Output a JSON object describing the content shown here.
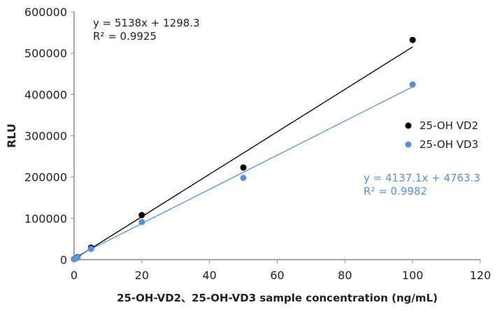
{
  "chart_data": {
    "type": "scatter",
    "xlabel": "25-OH-VD2、25-OH-VD3 sample concentration (ng/mL)",
    "ylabel": "RLU",
    "xlim": [
      0,
      120
    ],
    "ylim": [
      0,
      600000
    ],
    "xticks": [
      0,
      20,
      40,
      60,
      80,
      100,
      120
    ],
    "yticks": [
      0,
      100000,
      200000,
      300000,
      400000,
      500000,
      600000
    ],
    "grid": false,
    "legend_placement": "right",
    "series": [
      {
        "name": "25-OH VD2",
        "color": "#000000",
        "x": [
          0,
          0.5,
          1,
          5,
          20,
          50,
          100
        ],
        "y": [
          1500,
          3500,
          6000,
          29000,
          108000,
          223000,
          532000
        ],
        "trendline": {
          "slope": 5138,
          "intercept": 1298.3,
          "equation": "y = 5138x + 1298.3",
          "r2": "R² = 0.9925"
        }
      },
      {
        "name": "25-OH VD3",
        "color": "#5b8fd6",
        "x": [
          0,
          0.5,
          1,
          5,
          20,
          50,
          100
        ],
        "y": [
          1000,
          3000,
          5000,
          26000,
          91000,
          198000,
          424000
        ],
        "trendline": {
          "slope": 4137.1,
          "intercept": 4763.3,
          "equation": "y = 4137.1x + 4763.3",
          "r2": "R² = 0.9982"
        }
      }
    ]
  }
}
